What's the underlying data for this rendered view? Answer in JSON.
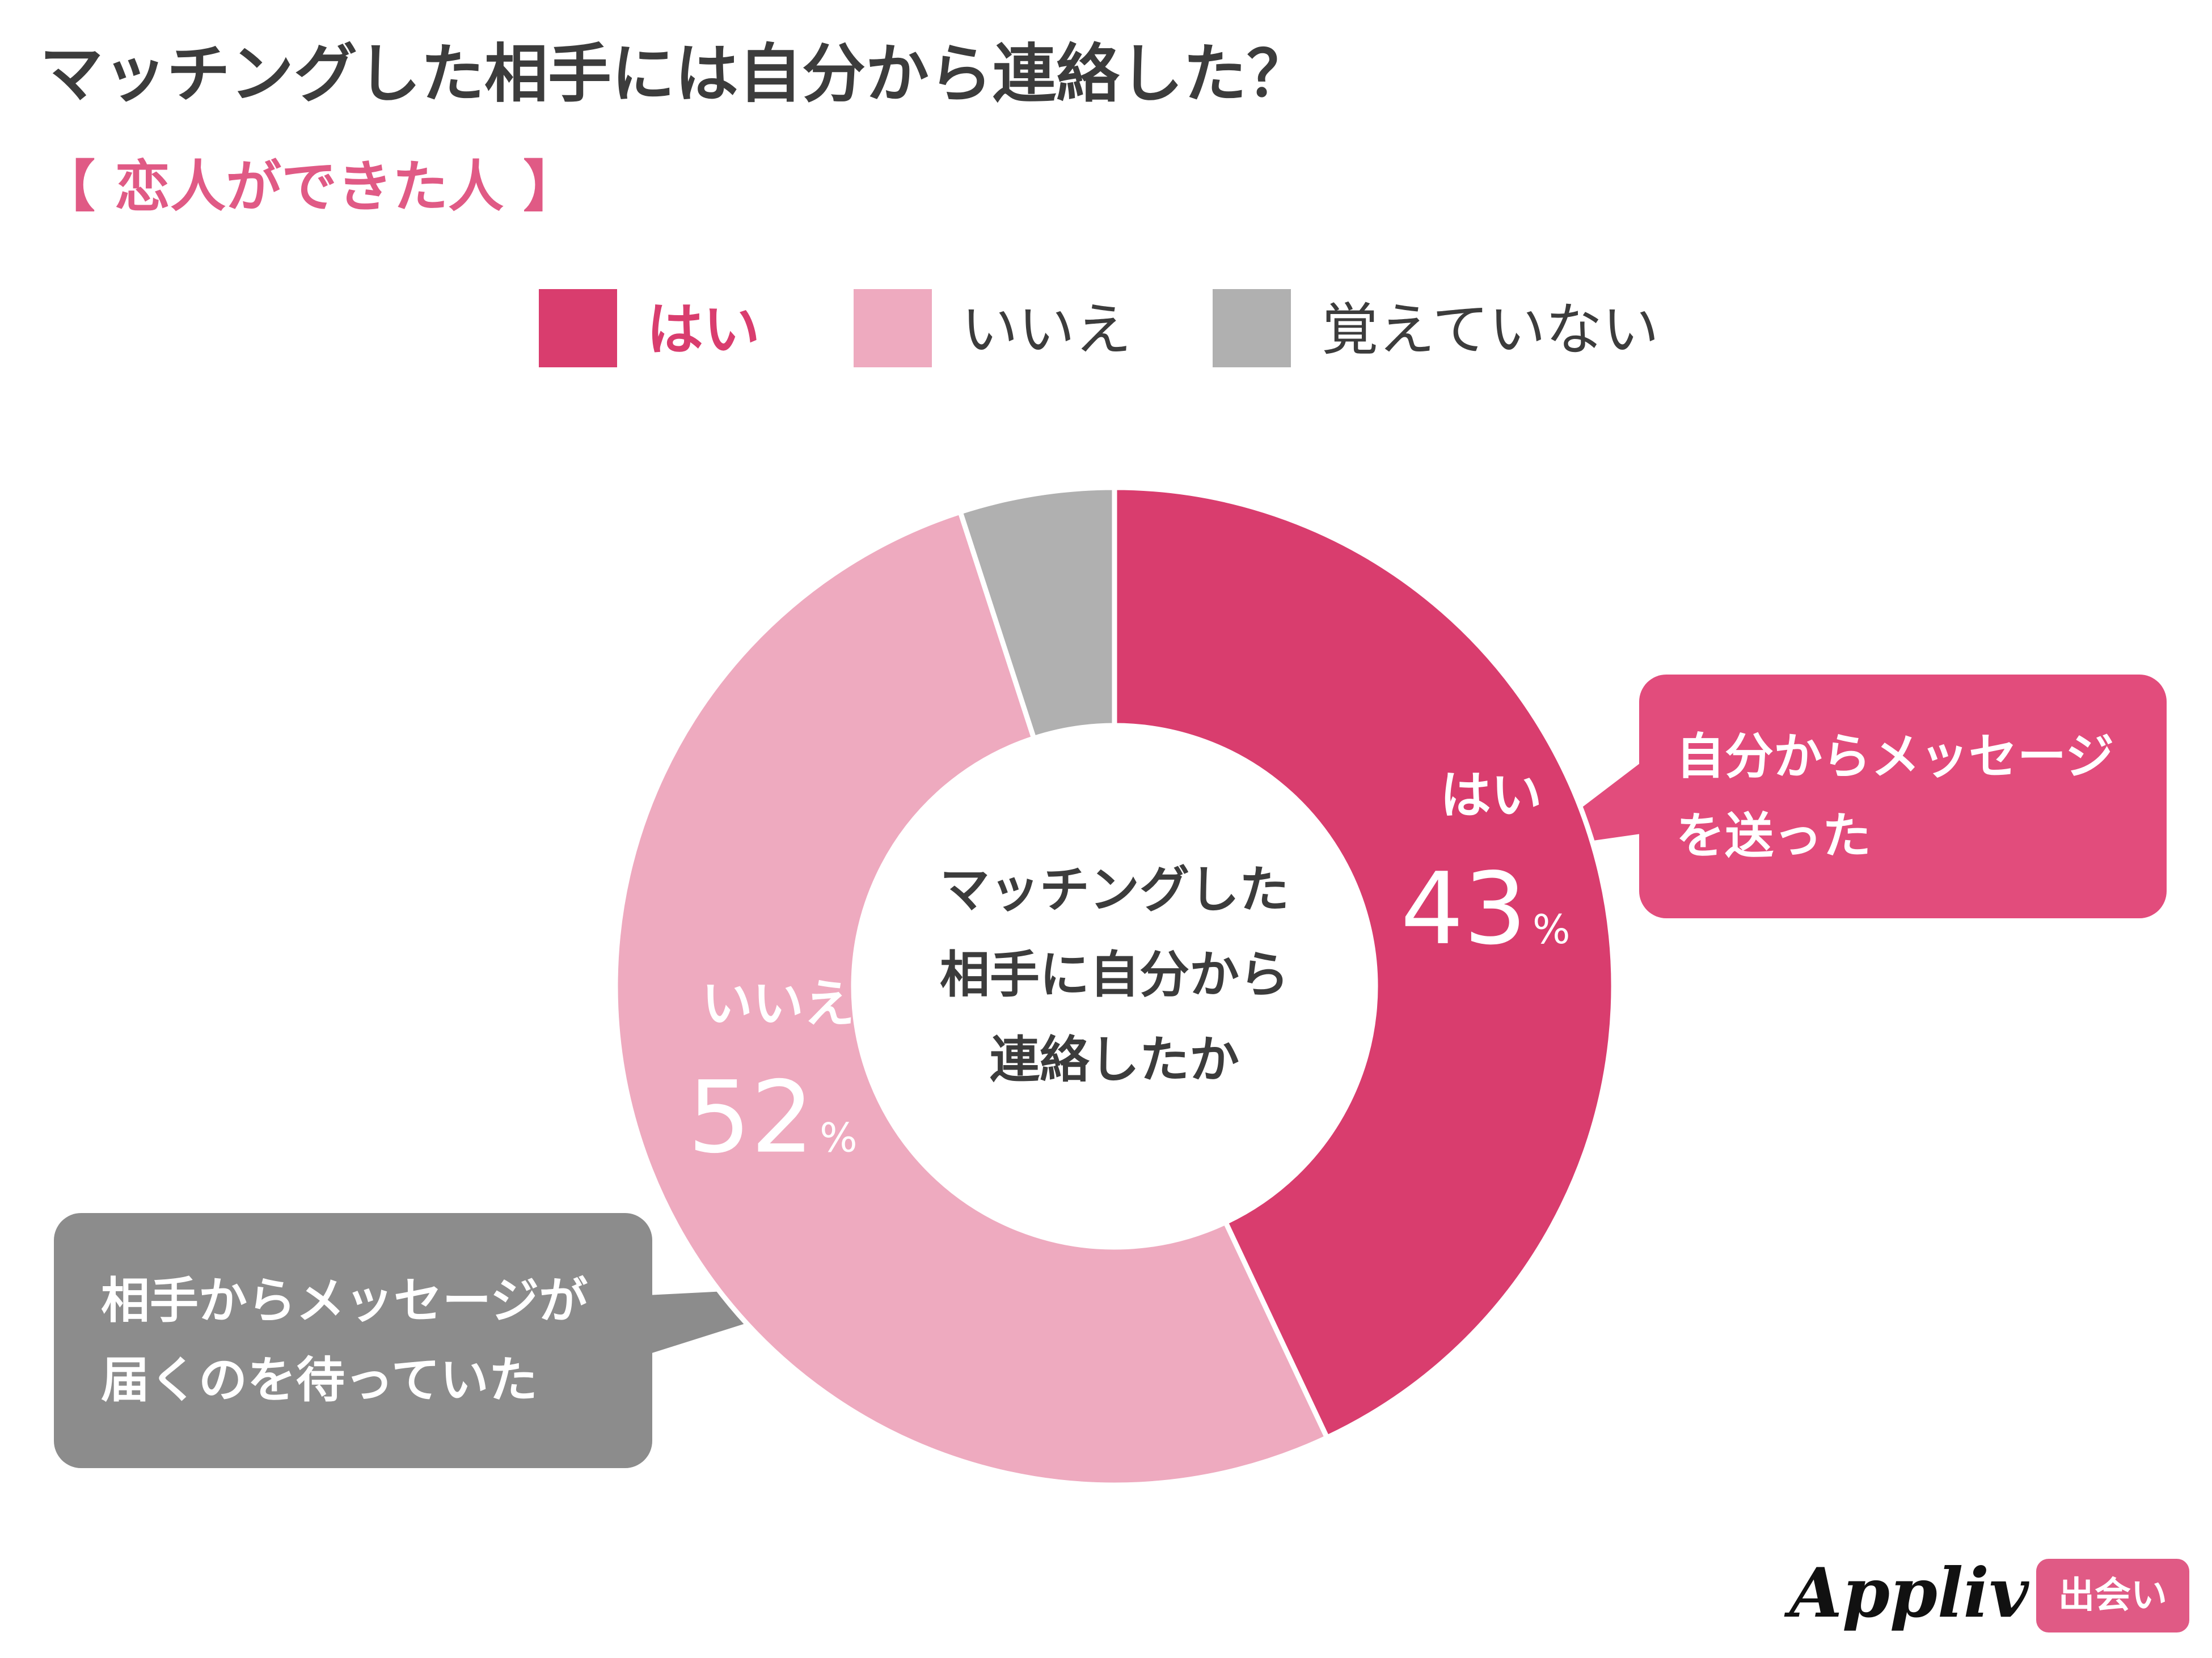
{
  "title": "マッチングした相手には自分から連絡した？",
  "subtitle": "【 恋人ができた人 】",
  "legend": [
    {
      "label": "はい",
      "color": "#d93d6e",
      "text_color": "#d93d6e"
    },
    {
      "label": "いいえ",
      "color": "#eeaabf",
      "text_color": "#3c3c3c"
    },
    {
      "label": "覚えていない",
      "color": "#b0b0b0",
      "text_color": "#3c3c3c"
    }
  ],
  "chart_data": {
    "type": "pie",
    "donut": true,
    "title": "マッチングした相手には自分から連絡した？",
    "subtitle": "【 恋人ができた人 】",
    "center_label": [
      "マッチングした",
      "相手に自分から",
      "連絡したか"
    ],
    "slices": [
      {
        "label": "はい",
        "value": 43,
        "unit": "%",
        "color": "#d93d6e"
      },
      {
        "label": "いいえ",
        "value": 52,
        "unit": "%",
        "color": "#eeaabf"
      },
      {
        "label": "覚えていない",
        "value": 5,
        "unit": "%",
        "color": "#b0b0b0"
      }
    ],
    "start_angle": "12 o'clock",
    "direction": "clockwise",
    "legend_position": "top"
  },
  "callouts": {
    "yes": {
      "lines": [
        "自分からメッセージ",
        "を送った"
      ],
      "color": "#e24c7c"
    },
    "no": {
      "lines": [
        "相手からメッセージが",
        "届くのを待っていた"
      ],
      "color": "#8c8c8c"
    }
  },
  "logo": {
    "name": "Appliv",
    "badge": "出会い"
  }
}
